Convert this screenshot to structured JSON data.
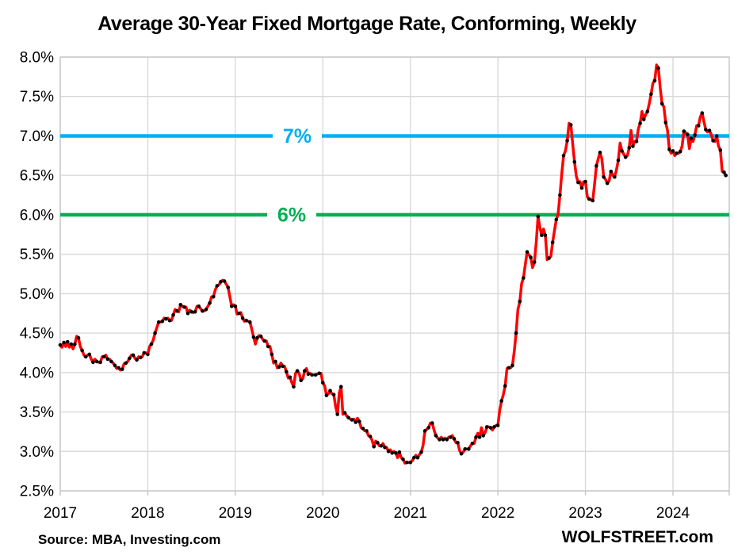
{
  "header": {
    "title": "Average 30-Year Fixed Mortgage Rate, Conforming, Weekly"
  },
  "footer": {
    "source": "Source: MBA, Investing.com",
    "watermark": "WOLFSTREET.com"
  },
  "chart_data": {
    "type": "line",
    "title": "Average 30-Year Fixed Mortgage Rate, Conforming, Weekly",
    "xlabel": "",
    "ylabel": "",
    "unit": "%",
    "grid": true,
    "ylim": [
      2.5,
      8.0
    ],
    "y_tick_labels": [
      "8.0%",
      "7.5%",
      "7.0%",
      "6.5%",
      "6.0%",
      "5.5%",
      "5.0%",
      "4.5%",
      "4.0%",
      "3.5%",
      "3.0%",
      "2.5%"
    ],
    "x_tick_labels": [
      "2017",
      "2018",
      "2019",
      "2020",
      "2021",
      "2022",
      "2023",
      "2024"
    ],
    "x_range_years": [
      2017.0,
      2024.625
    ],
    "gridline_color": "#D9D9D9",
    "reference_lines": [
      {
        "label": "7%",
        "value": 7.0,
        "color": "#00B0F0"
      },
      {
        "label": "6%",
        "value": 6.0,
        "color": "#00B050"
      }
    ],
    "series": [
      {
        "name": "Average 30-year fixed mortgage rate, weekly",
        "line_color": "#FF0000",
        "marker_color": "#000000",
        "start_year": 2017,
        "points_per_year": 48,
        "values": [
          4.35,
          4.32,
          4.38,
          4.33,
          4.39,
          4.32,
          4.36,
          4.3,
          4.36,
          4.46,
          4.44,
          4.33,
          4.28,
          4.22,
          4.2,
          4.22,
          4.23,
          4.17,
          4.13,
          4.17,
          4.14,
          4.13,
          4.13,
          4.2,
          4.2,
          4.22,
          4.17,
          4.17,
          4.14,
          4.12,
          4.09,
          4.05,
          4.06,
          4.03,
          4.04,
          4.11,
          4.12,
          4.14,
          4.18,
          4.22,
          4.22,
          4.18,
          4.16,
          4.2,
          4.19,
          4.2,
          4.25,
          4.25,
          4.23,
          4.33,
          4.36,
          4.41,
          4.5,
          4.57,
          4.64,
          4.64,
          4.65,
          4.69,
          4.68,
          4.69,
          4.66,
          4.66,
          4.73,
          4.8,
          4.78,
          4.77,
          4.86,
          4.84,
          4.83,
          4.83,
          4.75,
          4.79,
          4.77,
          4.76,
          4.77,
          4.84,
          4.84,
          4.81,
          4.78,
          4.78,
          4.8,
          4.84,
          4.88,
          4.96,
          4.96,
          5.05,
          5.1,
          5.11,
          5.15,
          5.17,
          5.16,
          5.12,
          5.08,
          4.96,
          4.84,
          4.86,
          4.84,
          4.74,
          4.75,
          4.76,
          4.69,
          4.65,
          4.66,
          4.65,
          4.64,
          4.55,
          4.45,
          4.36,
          4.44,
          4.47,
          4.46,
          4.42,
          4.4,
          4.4,
          4.33,
          4.33,
          4.23,
          4.12,
          4.14,
          4.06,
          4.07,
          4.12,
          4.08,
          4.08,
          4.01,
          3.93,
          3.94,
          3.87,
          3.82,
          3.99,
          4.02,
          3.99,
          3.9,
          3.92,
          4.02,
          4.05,
          3.98,
          3.99,
          3.97,
          3.97,
          3.97,
          3.98,
          3.99,
          3.99,
          3.87,
          3.83,
          3.71,
          3.73,
          3.77,
          3.73,
          3.72,
          3.57,
          3.47,
          3.74,
          3.82,
          3.47,
          3.49,
          3.45,
          3.43,
          3.41,
          3.4,
          3.41,
          3.37,
          3.42,
          3.38,
          3.3,
          3.29,
          3.26,
          3.26,
          3.2,
          3.19,
          3.14,
          3.06,
          3.13,
          3.11,
          3.07,
          3.07,
          3.1,
          3.05,
          3.05,
          3.0,
          3.02,
          2.98,
          3.0,
          2.98,
          2.92,
          2.99,
          2.92,
          2.9,
          2.85,
          2.86,
          2.86,
          2.86,
          2.88,
          2.92,
          2.95,
          2.92,
          2.96,
          2.99,
          3.08,
          3.26,
          3.28,
          3.3,
          3.36,
          3.36,
          3.27,
          3.2,
          3.17,
          3.15,
          3.18,
          3.15,
          3.17,
          3.15,
          3.18,
          3.18,
          3.2,
          3.16,
          3.11,
          3.11,
          3.01,
          2.97,
          2.99,
          3.03,
          3.03,
          3.03,
          3.07,
          3.1,
          3.1,
          3.18,
          3.23,
          3.18,
          3.3,
          3.2,
          3.24,
          3.31,
          3.31,
          3.3,
          3.27,
          3.31,
          3.33,
          3.33,
          3.52,
          3.64,
          3.72,
          3.83,
          4.05,
          4.06,
          4.06,
          4.09,
          4.27,
          4.5,
          4.8,
          4.9,
          5.13,
          5.2,
          5.37,
          5.53,
          5.49,
          5.46,
          5.33,
          5.4,
          5.65,
          5.98,
          5.84,
          5.74,
          5.82,
          5.74,
          5.43,
          5.45,
          5.47,
          5.65,
          5.8,
          5.94,
          6.01,
          6.25,
          6.52,
          6.75,
          6.81,
          6.94,
          7.16,
          7.14,
          6.9,
          6.67,
          6.49,
          6.41,
          6.42,
          6.34,
          6.42,
          6.42,
          6.23,
          6.2,
          6.19,
          6.18,
          6.39,
          6.62,
          6.71,
          6.79,
          6.71,
          6.48,
          6.45,
          6.4,
          6.43,
          6.55,
          6.5,
          6.48,
          6.57,
          6.69,
          6.91,
          6.81,
          6.77,
          6.73,
          6.75,
          6.85,
          7.07,
          6.87,
          6.93,
          6.93,
          7.09,
          7.16,
          7.31,
          7.21,
          7.27,
          7.31,
          7.41,
          7.53,
          7.67,
          7.7,
          7.9,
          7.86,
          7.61,
          7.41,
          7.37,
          7.17,
          7.07,
          6.83,
          6.78,
          6.81,
          6.75,
          6.78,
          6.78,
          6.8,
          6.87,
          7.06,
          7.04,
          7.02,
          6.84,
          6.97,
          6.93,
          7.01,
          7.13,
          7.13,
          7.24,
          7.29,
          7.18,
          7.08,
          7.05,
          7.07,
          7.02,
          6.94,
          6.93,
          7.0,
          6.87,
          6.82,
          6.55,
          6.54,
          6.5
        ]
      }
    ],
    "legend": "none"
  }
}
